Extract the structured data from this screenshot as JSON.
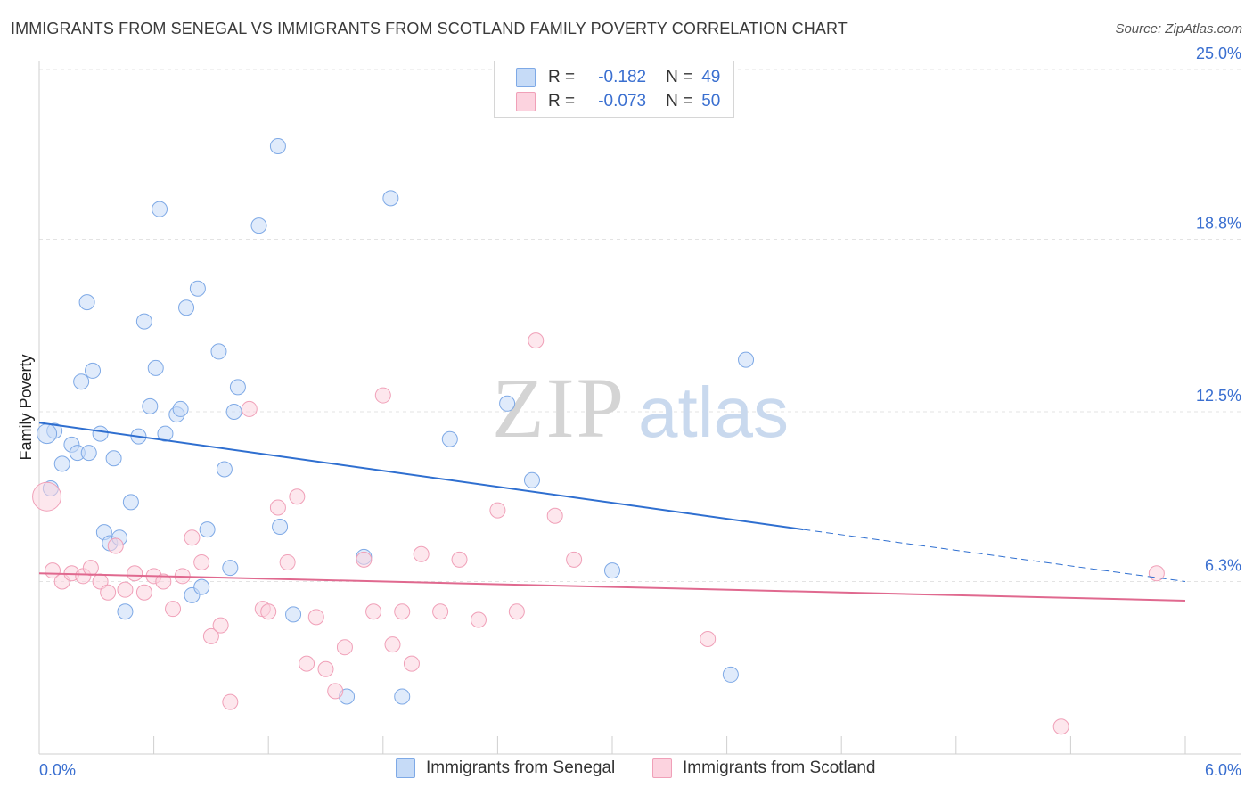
{
  "title": "IMMIGRANTS FROM SENEGAL VS IMMIGRANTS FROM SCOTLAND FAMILY POVERTY CORRELATION CHART",
  "source": "Source: ZipAtlas.com",
  "watermark": {
    "zip": "ZIP",
    "atlas": "atlas"
  },
  "legend": {
    "r_label": "R =",
    "n_label": "N =",
    "rows": [
      {
        "r": "-0.182",
        "n": "49",
        "color": "#7ea9e6",
        "fill": "#c6dbf7"
      },
      {
        "r": "-0.073",
        "n": "50",
        "color": "#f0a0b8",
        "fill": "#fcd3df"
      }
    ]
  },
  "bottom_legend": {
    "senegal": "Immigrants from Senegal",
    "scotland": "Immigrants from Scotland"
  },
  "colors": {
    "senegal_line": "#2f6fd0",
    "scotland_line": "#e0698f",
    "tick_label": "#3a6fd0",
    "grid": "#e3e3e3",
    "axis_title": "#222222"
  },
  "chart_data": {
    "type": "scatter",
    "xlabel": "",
    "ylabel": "Family Poverty",
    "xlim": [
      0.0,
      6.0
    ],
    "ylim": [
      0.0,
      25.0
    ],
    "x_tick_labels": [
      "0.0%",
      "6.0%"
    ],
    "y_ticks": [
      6.3,
      12.5,
      18.8,
      25.0
    ],
    "y_tick_labels": [
      "6.3%",
      "12.5%",
      "18.8%",
      "25.0%"
    ],
    "series": [
      {
        "name": "Immigrants from Senegal",
        "points": [
          [
            0.08,
            11.8
          ],
          [
            0.06,
            9.7
          ],
          [
            0.12,
            10.6
          ],
          [
            0.17,
            11.3
          ],
          [
            0.2,
            11.0
          ],
          [
            0.26,
            11.0
          ],
          [
            0.22,
            13.6
          ],
          [
            0.28,
            14.0
          ],
          [
            0.25,
            16.5
          ],
          [
            0.32,
            11.7
          ],
          [
            0.34,
            8.1
          ],
          [
            0.37,
            7.7
          ],
          [
            0.39,
            10.8
          ],
          [
            0.42,
            7.9
          ],
          [
            0.45,
            5.2
          ],
          [
            0.48,
            9.2
          ],
          [
            0.52,
            11.6
          ],
          [
            0.55,
            15.8
          ],
          [
            0.58,
            12.7
          ],
          [
            0.61,
            14.1
          ],
          [
            0.63,
            19.9
          ],
          [
            0.66,
            11.7
          ],
          [
            0.72,
            12.4
          ],
          [
            0.74,
            12.6
          ],
          [
            0.77,
            16.3
          ],
          [
            0.8,
            5.8
          ],
          [
            0.83,
            17.0
          ],
          [
            0.85,
            6.1
          ],
          [
            0.88,
            8.2
          ],
          [
            0.94,
            14.7
          ],
          [
            0.97,
            10.4
          ],
          [
            1.0,
            6.8
          ],
          [
            1.02,
            12.5
          ],
          [
            1.04,
            13.4
          ],
          [
            1.15,
            19.3
          ],
          [
            1.25,
            22.2
          ],
          [
            1.26,
            8.3
          ],
          [
            1.33,
            5.1
          ],
          [
            1.61,
            2.1
          ],
          [
            1.7,
            7.2
          ],
          [
            1.84,
            20.3
          ],
          [
            1.9,
            2.1
          ],
          [
            2.15,
            11.5
          ],
          [
            2.45,
            12.8
          ],
          [
            2.58,
            10.0
          ],
          [
            3.0,
            6.7
          ],
          [
            3.62,
            2.9
          ],
          [
            3.7,
            14.4
          ],
          [
            0.04,
            11.7
          ]
        ],
        "trend": {
          "x1": 0.0,
          "y1": 12.1,
          "x2": 4.0,
          "y2": 8.2,
          "dash_x2": 6.0,
          "dash_y2": 6.3
        }
      },
      {
        "name": "Immigrants from Scotland",
        "points": [
          [
            0.04,
            9.4
          ],
          [
            0.07,
            6.7
          ],
          [
            0.12,
            6.3
          ],
          [
            0.17,
            6.6
          ],
          [
            0.23,
            6.5
          ],
          [
            0.27,
            6.8
          ],
          [
            0.32,
            6.3
          ],
          [
            0.36,
            5.9
          ],
          [
            0.4,
            7.6
          ],
          [
            0.45,
            6.0
          ],
          [
            0.5,
            6.6
          ],
          [
            0.55,
            5.9
          ],
          [
            0.6,
            6.5
          ],
          [
            0.65,
            6.3
          ],
          [
            0.7,
            5.3
          ],
          [
            0.75,
            6.5
          ],
          [
            0.8,
            7.9
          ],
          [
            0.85,
            7.0
          ],
          [
            0.9,
            4.3
          ],
          [
            0.95,
            4.7
          ],
          [
            1.0,
            1.9
          ],
          [
            1.1,
            12.6
          ],
          [
            1.17,
            5.3
          ],
          [
            1.2,
            5.2
          ],
          [
            1.25,
            9.0
          ],
          [
            1.3,
            7.0
          ],
          [
            1.35,
            9.4
          ],
          [
            1.4,
            3.3
          ],
          [
            1.45,
            5.0
          ],
          [
            1.5,
            3.1
          ],
          [
            1.55,
            2.3
          ],
          [
            1.6,
            3.9
          ],
          [
            1.7,
            7.1
          ],
          [
            1.75,
            5.2
          ],
          [
            1.8,
            13.1
          ],
          [
            1.85,
            4.0
          ],
          [
            1.9,
            5.2
          ],
          [
            1.95,
            3.3
          ],
          [
            2.0,
            7.3
          ],
          [
            2.1,
            5.2
          ],
          [
            2.2,
            7.1
          ],
          [
            2.3,
            4.9
          ],
          [
            2.4,
            8.9
          ],
          [
            2.5,
            5.2
          ],
          [
            2.6,
            15.1
          ],
          [
            2.7,
            8.7
          ],
          [
            2.8,
            7.1
          ],
          [
            3.5,
            4.2
          ],
          [
            5.35,
            1.0
          ],
          [
            5.85,
            6.6
          ]
        ],
        "trend": {
          "x1": 0.0,
          "y1": 6.6,
          "x2": 6.0,
          "y2": 5.6
        }
      }
    ]
  }
}
